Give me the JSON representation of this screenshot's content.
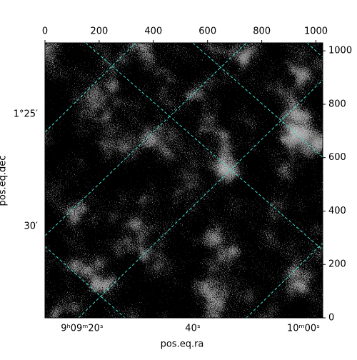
{
  "chart_data": {
    "type": "image",
    "xlabel": "pos.eq.ra",
    "ylabel": "pos.eq.dec",
    "xlim": [
      0,
      1025
    ],
    "xticks": [
      0,
      200,
      400,
      600,
      800,
      1000
    ],
    "ylim": [
      0,
      1030
    ],
    "yticks": [
      0,
      200,
      400,
      600,
      800,
      1000
    ],
    "ra_labels": [
      "9ʰ09ᵐ20ˢ",
      "40ˢ",
      "10ᵐ00ˢ"
    ],
    "dec_labels": [
      "1°25′",
      "30′"
    ],
    "colormap": "gray",
    "grid_color": "#40e0d0"
  }
}
